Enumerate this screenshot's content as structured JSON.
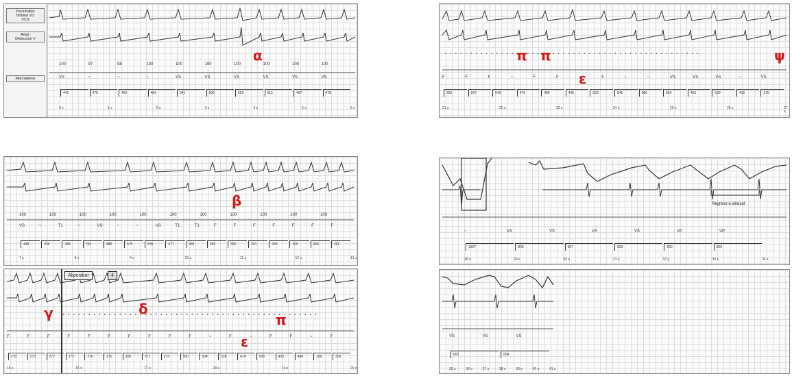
{
  "top_left": {
    "sidebar": {
      "label_channel1": "Pacemaker\nBobina VD\nVCS",
      "label_channel2": "Ampl.\nDetección V",
      "label_markers": "Marcadores"
    },
    "greek": "α",
    "marker_values": [
      "100",
      "97",
      "98",
      "100",
      "100",
      "100",
      "100",
      "100",
      "100",
      "100"
    ],
    "marker_labels": [
      "VS",
      "~",
      "~",
      "~",
      "VS",
      "VS",
      "VS",
      "VS",
      "VS",
      "VS"
    ],
    "intervals": [
      "441",
      "475",
      "462",
      "484",
      "541",
      "580",
      "553",
      "515",
      "497",
      "478"
    ],
    "time_ticks": [
      "0 s",
      "1 s",
      "2 s",
      "3 s",
      "4 s",
      "5 s",
      "6 s"
    ]
  },
  "top_right": {
    "greek_pi1": "π",
    "greek_pi2": "π",
    "greek_psi": "ψ",
    "greek_epsilon": "ε",
    "marker_labels": [
      "F",
      "F",
      "F",
      "~",
      "F",
      "F",
      "~",
      "F",
      "~",
      "~",
      "VS",
      "VS",
      "VS",
      "~",
      "VS"
    ],
    "intervals": [
      "266",
      "267",
      "545",
      "476",
      "486",
      "445",
      "533",
      "545",
      "586",
      "556",
      "453",
      "539",
      "416",
      "376"
    ],
    "time_ticks": [
      "21 s",
      "22 s",
      "23 s",
      "24 s",
      "25 s",
      "26 s",
      "27 s"
    ]
  },
  "middle_left": {
    "greek": "β",
    "marker_values": [
      "100",
      "100",
      "100",
      "100",
      "100",
      "100",
      "100",
      "100",
      "100",
      "100",
      "100"
    ],
    "marker_labels": [
      "VS",
      "~",
      "T1",
      "~",
      "VS",
      "~",
      "~",
      "VS",
      "T1",
      "T1",
      "F",
      "F",
      "F",
      "F",
      "F",
      "F",
      "F"
    ],
    "intervals": [
      "448",
      "436",
      "448",
      "783",
      "488",
      "475",
      "535",
      "477",
      "481",
      "265",
      "266",
      "261",
      "268",
      "265",
      "266",
      "261"
    ],
    "time_ticks": [
      "7 s",
      "8 s",
      "9 s",
      "10 s",
      "11 s",
      "12 s",
      "13 s"
    ]
  },
  "bottom_left": {
    "callout_label": "Aliposibor",
    "callout_button": "4",
    "greek_gamma": "γ",
    "greek_delta": "δ",
    "greek_pi": "π",
    "greek_epsilon": "ε",
    "marker_labels": [
      "F",
      "F",
      "F",
      "F",
      "F",
      "F",
      "F",
      "F",
      "F",
      "F",
      "~",
      "F",
      "~",
      "F",
      "F",
      "~",
      "F"
    ],
    "intervals": [
      "270",
      "273",
      "277",
      "273",
      "276",
      "276",
      "266",
      "271",
      "273",
      "560",
      "504",
      "538",
      "414",
      "506",
      "456",
      "494",
      "288",
      "306"
    ],
    "time_ticks": [
      "15 s",
      "16 s",
      "17 s",
      "18 s",
      "19 s",
      "20 s"
    ]
  },
  "middle_right": {
    "return_label": "Regreso a sinusal",
    "marker_labels": [
      "~",
      "VS",
      "VS",
      "VS",
      "VS",
      "VP",
      "VP"
    ],
    "intervals": [
      "1307",
      "803",
      "667",
      "620",
      "660",
      "660"
    ],
    "time_ticks": [
      "28 s",
      "29 s",
      "30 s",
      "31 s",
      "32 s",
      "33 s",
      "34 s"
    ]
  },
  "bottom_right": {
    "marker_labels": [
      "VS",
      "VS",
      "VS"
    ],
    "intervals": [
      "800",
      "804"
    ],
    "time_ticks": [
      "35 s",
      "36 s",
      "37 s",
      "38 s",
      "39 s",
      "40 s",
      "41 s"
    ]
  }
}
